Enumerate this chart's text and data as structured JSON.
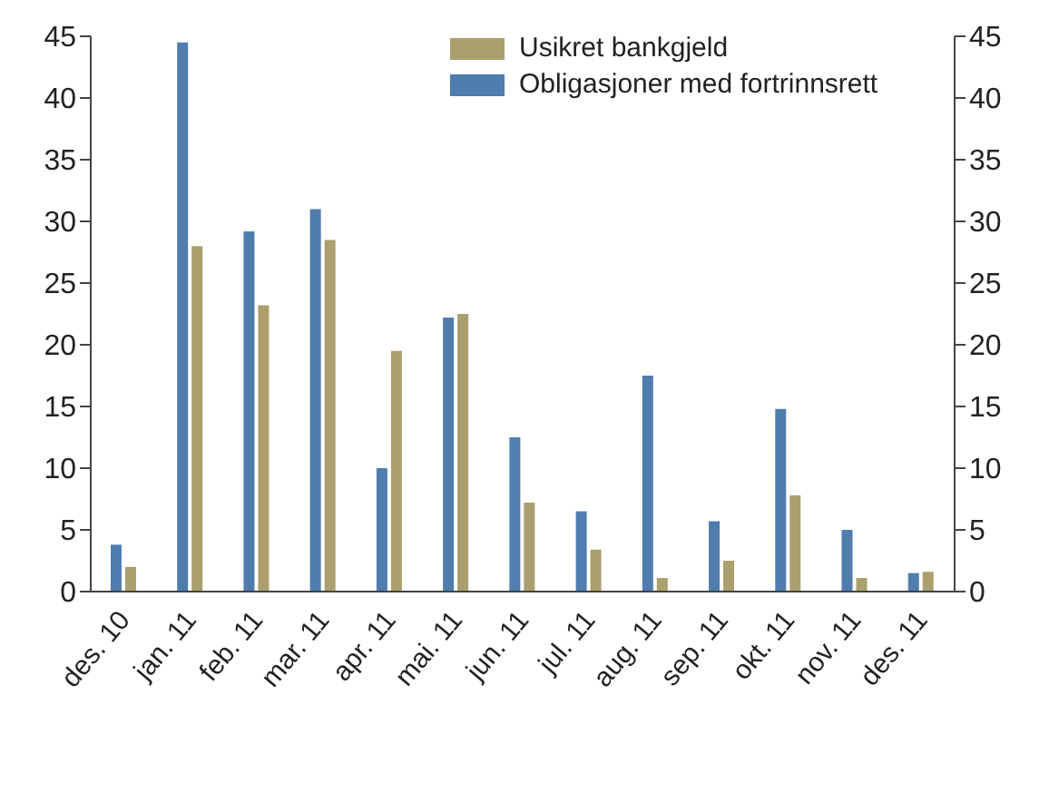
{
  "chart_data": {
    "type": "bar",
    "categories": [
      "des. 10",
      "jan. 11",
      "feb. 11",
      "mar. 11",
      "apr. 11",
      "mai. 11",
      "jun. 11",
      "jul. 11",
      "aug. 11",
      "sep. 11",
      "okt. 11",
      "nov. 11",
      "des. 11"
    ],
    "series": [
      {
        "name": "Usikret bankgjeld",
        "color": "#ab9f6d",
        "values": [
          2.0,
          28,
          23.2,
          28.5,
          19.5,
          22.5,
          7.2,
          3.4,
          1.1,
          2.5,
          7.8,
          1.1,
          1.6
        ]
      },
      {
        "name": "Obligasjoner med fortrinnsrett",
        "color": "#4f7dae",
        "values": [
          3.8,
          44.5,
          29.2,
          31,
          10,
          22.2,
          12.5,
          6.5,
          17.5,
          5.7,
          14.8,
          5,
          1.5
        ]
      }
    ],
    "ylim": [
      0,
      45
    ],
    "yticks": [
      0,
      5,
      10,
      15,
      20,
      25,
      30,
      35,
      40,
      45
    ],
    "y2lim": [
      0,
      45
    ],
    "y2ticks": [
      0,
      5,
      10,
      15,
      20,
      25,
      30,
      35,
      40,
      45
    ],
    "grid": false,
    "legend": "top"
  }
}
